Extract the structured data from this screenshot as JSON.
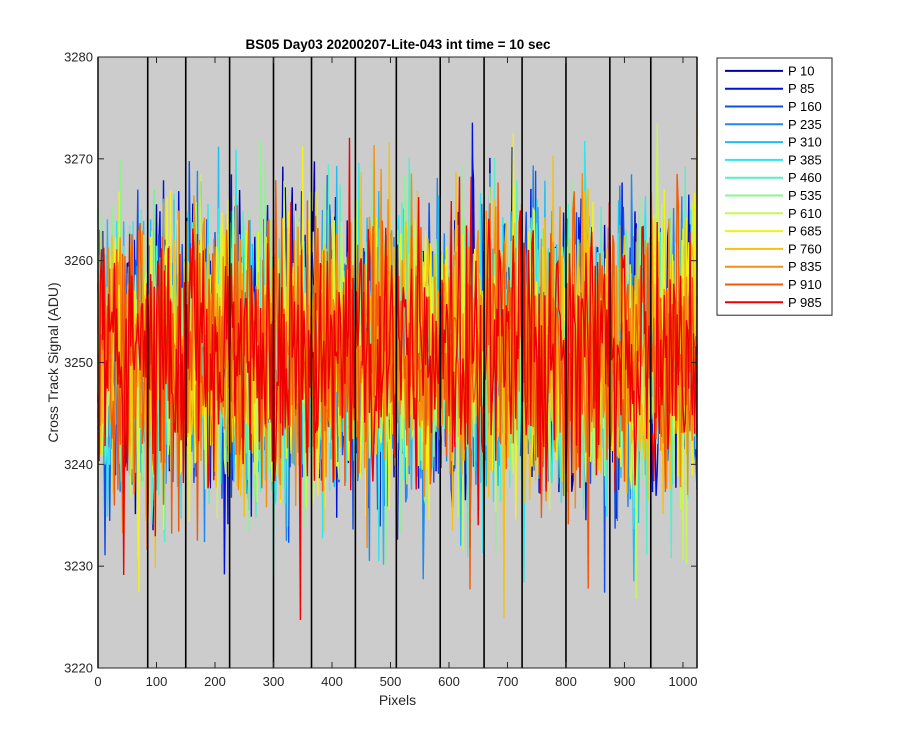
{
  "chart_data": {
    "type": "line",
    "title": "BS05 Day03 20200207-Lite-043 int time = 10 sec",
    "xlabel": "Pixels",
    "ylabel": "Cross Track Signal (ADU)",
    "xlim": [
      0,
      1024
    ],
    "ylim": [
      3220,
      3280
    ],
    "xticks": [
      0,
      100,
      200,
      300,
      400,
      500,
      600,
      700,
      800,
      900,
      1000
    ],
    "xtick_labels": [
      "0",
      "100",
      "200",
      "300",
      "400",
      "500",
      "600",
      "700",
      "800",
      "900",
      "1000"
    ],
    "yticks": [
      3220,
      3230,
      3240,
      3250,
      3260,
      3270,
      3280
    ],
    "ytick_labels": [
      "3220",
      "3230",
      "3240",
      "3250",
      "3260",
      "3270",
      "3280"
    ],
    "background": "#cccccc",
    "vertical_markers": [
      0,
      85,
      150,
      225,
      300,
      365,
      440,
      510,
      585,
      660,
      725,
      800,
      875,
      945,
      1024
    ],
    "noise": {
      "mean": 3251,
      "std": 7,
      "min": 3222,
      "max": 3278
    },
    "legend_position": "outside-top-right",
    "series": [
      {
        "name": "P 10",
        "color": "#0000aa"
      },
      {
        "name": "P 85",
        "color": "#0011dd"
      },
      {
        "name": "P 160",
        "color": "#0f4fe6"
      },
      {
        "name": "P 235",
        "color": "#1f88ec"
      },
      {
        "name": "P 310",
        "color": "#1fbcf2"
      },
      {
        "name": "P 385",
        "color": "#2de6f0"
      },
      {
        "name": "P 460",
        "color": "#55f0c6"
      },
      {
        "name": "P 535",
        "color": "#8cf58c"
      },
      {
        "name": "P 610",
        "color": "#c8f55a"
      },
      {
        "name": "P 685",
        "color": "#f2f21a"
      },
      {
        "name": "P 760",
        "color": "#f5c20f"
      },
      {
        "name": "P 835",
        "color": "#f58d0f"
      },
      {
        "name": "P 910",
        "color": "#f25a0a"
      },
      {
        "name": "P 985",
        "color": "#ee0000"
      }
    ]
  }
}
